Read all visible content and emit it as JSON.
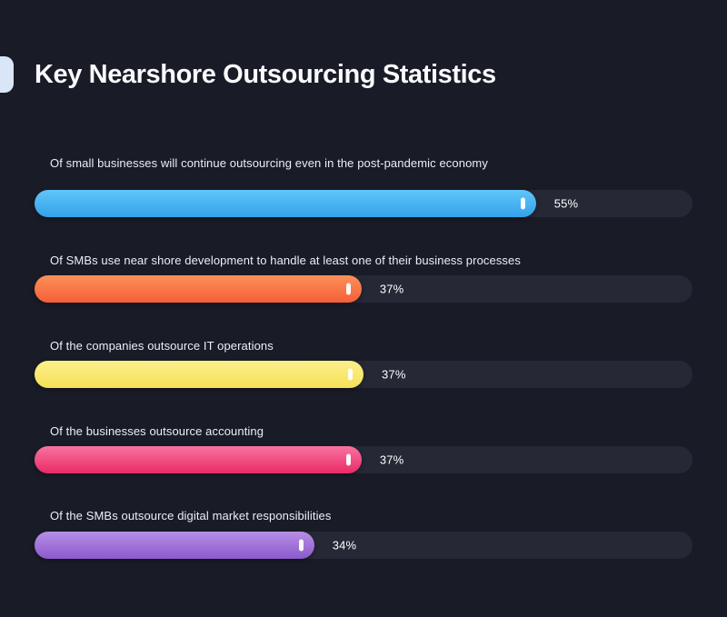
{
  "page": {
    "background_color": "#191b27"
  },
  "header": {
    "title": "Key Nearshore Outsourcing Statistics",
    "accent_color": "#d9e6f8"
  },
  "chart_data": {
    "type": "bar",
    "orientation": "horizontal",
    "title": "Key Nearshore Outsourcing Statistics",
    "value_unit": "%",
    "xlim": [
      0,
      72
    ],
    "grid": false,
    "legend": false,
    "track_color": "#262836",
    "bars": [
      {
        "label": "Of small businesses will continue outsourcing even in the post-pandemic economy",
        "value": 55,
        "value_label": "55%",
        "fill_pct": 76.2,
        "color_top": "#60c5f9",
        "color_bottom": "#33a2ea"
      },
      {
        "label": "Of SMBs use near shore development to handle at least one of their business processes",
        "value": 37,
        "value_label": "37%",
        "fill_pct": 49.7,
        "color_top": "#fc9158",
        "color_bottom": "#f65e38"
      },
      {
        "label": "Of the companies outsource IT operations",
        "value": 37,
        "value_label": "37%",
        "fill_pct": 50.0,
        "color_top": "#fcf08b",
        "color_bottom": "#f6e157"
      },
      {
        "label": "Of the businesses outsource accounting",
        "value": 37,
        "value_label": "37%",
        "fill_pct": 49.7,
        "color_top": "#f873a1",
        "color_bottom": "#ea2a66"
      },
      {
        "label": "Of the SMBs outsource digital market responsibilities",
        "value": 34,
        "value_label": "34%",
        "fill_pct": 42.5,
        "color_top": "#b68fe5",
        "color_bottom": "#8c5acd"
      }
    ]
  }
}
